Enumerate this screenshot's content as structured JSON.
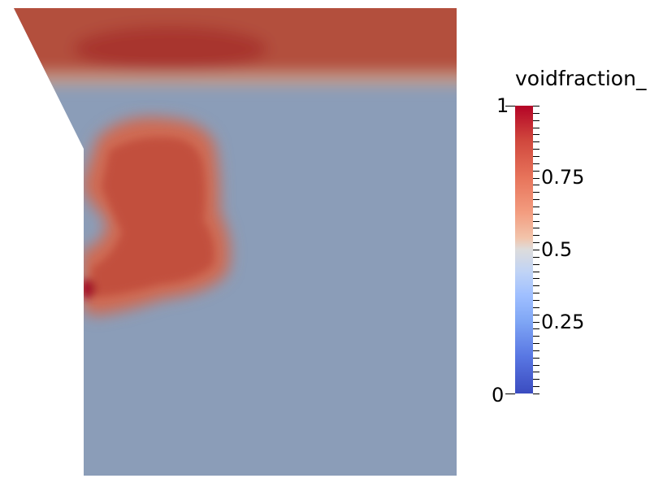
{
  "legend": {
    "title": "voidfraction_",
    "max_label": "1",
    "min_label": "0",
    "tick_labels": [
      "0.75",
      "0.5",
      "0.25"
    ],
    "range": [
      0,
      1
    ],
    "colormap": "cool-to-warm",
    "low_color": "#3b4cc0",
    "mid_color": "#dddcdc",
    "high_color": "#b40426"
  },
  "field": {
    "background_color": "#8b9db8",
    "top_layer_color": "#b24a3a",
    "blob_color": "#c85a45",
    "hot_spot_color": "#a4182a"
  }
}
